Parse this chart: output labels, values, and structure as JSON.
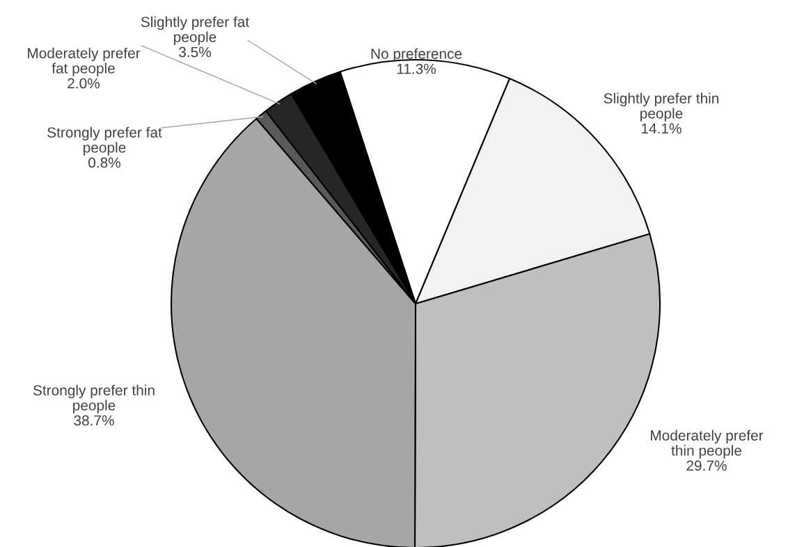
{
  "chart_data": {
    "type": "pie",
    "categories": [
      "No preference",
      "Slightly prefer thin\npeople",
      "Moderately prefer\nthin people",
      "Strongly prefer thin\npeople",
      "Strongly prefer fat\npeople",
      "Moderately prefer\nfat people",
      "Slightly prefer fat\npeople"
    ],
    "values": [
      11.3,
      14.1,
      29.7,
      38.7,
      0.8,
      2.0,
      3.5
    ],
    "value_labels": [
      "11.3%",
      "14.1%",
      "29.7%",
      "38.7%",
      "0.8%",
      "2.0%",
      "3.5%"
    ],
    "colors": [
      "#ffffff",
      "#f2f2f2",
      "#bfbfbf",
      "#a6a6a6",
      "#595959",
      "#262626",
      "#000000"
    ]
  }
}
